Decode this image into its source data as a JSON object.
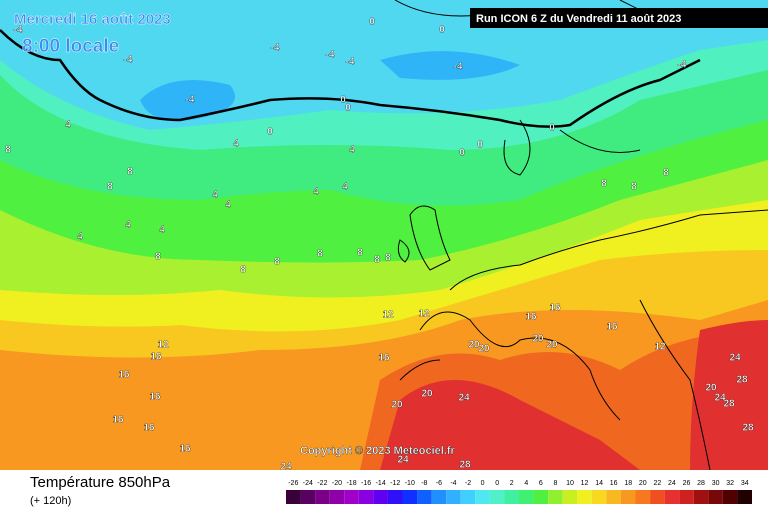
{
  "header": {
    "date": "Mercredi 16 août 2023",
    "time": "8:00 locale",
    "run": "Run ICON 6 Z du Vendredi 11 août 2023"
  },
  "map": {
    "copyright": "Copyright © 2023 Meteociel.fr",
    "labels": [
      "-4",
      "-4",
      "-4",
      "-4",
      "-4",
      "-4",
      "-4",
      "-4",
      "0",
      "0",
      "0",
      "0",
      "0",
      "0",
      "0",
      "0",
      "4",
      "4",
      "4",
      "4",
      "4",
      "4",
      "4",
      "4",
      "4",
      "4",
      "8",
      "8",
      "8",
      "8",
      "8",
      "8",
      "8",
      "8",
      "8",
      "8",
      "8",
      "8",
      "8",
      "12",
      "12",
      "12",
      "12",
      "16",
      "16",
      "16",
      "16",
      "16",
      "16",
      "16",
      "16",
      "16",
      "16",
      "20",
      "20",
      "20",
      "20",
      "20",
      "20",
      "20",
      "24",
      "24",
      "24",
      "24",
      "24",
      "28",
      "28",
      "28",
      "28"
    ]
  },
  "legend": {
    "title": "Température 850hPa",
    "subtitle": "(+ 120h)",
    "scale": [
      {
        "value": -26,
        "color": "#3a003a"
      },
      {
        "value": -24,
        "color": "#5a0060"
      },
      {
        "value": -22,
        "color": "#7a0088"
      },
      {
        "value": -20,
        "color": "#9000a8"
      },
      {
        "value": -18,
        "color": "#a000c8"
      },
      {
        "value": -16,
        "color": "#8a00e0"
      },
      {
        "value": -14,
        "color": "#6000f0"
      },
      {
        "value": -12,
        "color": "#3010f8"
      },
      {
        "value": -10,
        "color": "#1030ff"
      },
      {
        "value": -8,
        "color": "#1060ff"
      },
      {
        "value": -6,
        "color": "#2090ff"
      },
      {
        "value": -4,
        "color": "#30b0ff"
      },
      {
        "value": -2,
        "color": "#40d0ff"
      },
      {
        "value": 0,
        "color": "#50e8f0"
      },
      {
        "value": 0,
        "color": "#50f0c8"
      },
      {
        "value": 2,
        "color": "#40f0a0"
      },
      {
        "value": 4,
        "color": "#40f070"
      },
      {
        "value": 6,
        "color": "#50f040"
      },
      {
        "value": 8,
        "color": "#90f030"
      },
      {
        "value": 10,
        "color": "#c8f020"
      },
      {
        "value": 12,
        "color": "#f0f020"
      },
      {
        "value": 14,
        "color": "#f8d820"
      },
      {
        "value": 16,
        "color": "#f8b820"
      },
      {
        "value": 18,
        "color": "#f89820"
      },
      {
        "value": 20,
        "color": "#f87820"
      },
      {
        "value": 22,
        "color": "#f05020"
      },
      {
        "value": 24,
        "color": "#e83030"
      },
      {
        "value": 26,
        "color": "#d02020"
      },
      {
        "value": 28,
        "color": "#a01010"
      },
      {
        "value": 30,
        "color": "#780808"
      },
      {
        "value": 32,
        "color": "#500000"
      },
      {
        "value": 34,
        "color": "#200000"
      }
    ]
  }
}
